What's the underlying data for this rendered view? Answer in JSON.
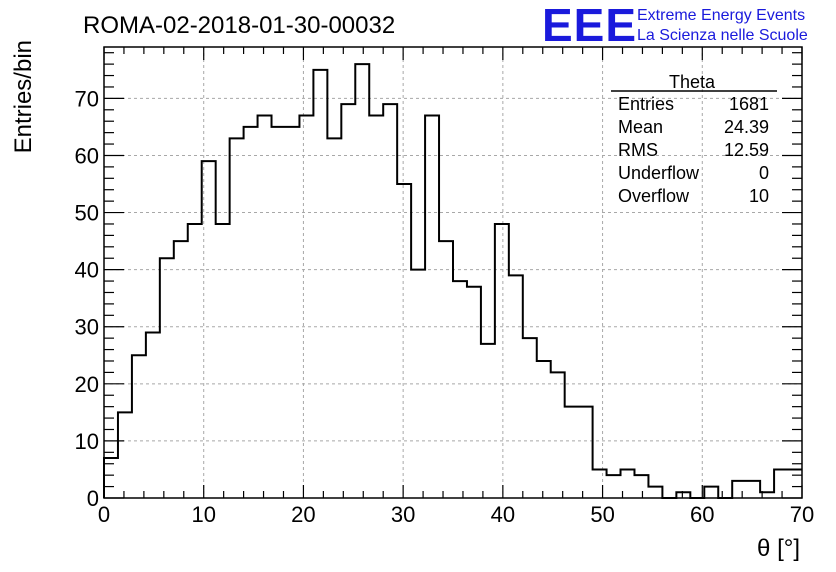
{
  "title": "ROMA-02-2018-01-30-00032",
  "logo": {
    "text": "EEE",
    "line1": "Extreme Energy Events",
    "line2": "La Scienza nelle Scuole",
    "color": "#1a1adc"
  },
  "stats": {
    "name": "Theta",
    "rows": [
      {
        "label": "Entries",
        "value": "1681"
      },
      {
        "label": "Mean",
        "value": "24.39"
      },
      {
        "label": "RMS",
        "value": "12.59"
      },
      {
        "label": "Underflow",
        "value": "0"
      },
      {
        "label": "Overflow",
        "value": "10"
      }
    ]
  },
  "chart_data": {
    "type": "histogram",
    "title": "ROMA-02-2018-01-30-00032",
    "xlabel": "θ [°]",
    "ylabel": "Entries/bin",
    "xlim": [
      0,
      70
    ],
    "ylim": [
      0,
      79
    ],
    "grid": true,
    "bin_width": 1.4,
    "x_ticks": [
      "0",
      "10",
      "20",
      "30",
      "40",
      "50",
      "60",
      "70"
    ],
    "y_ticks": [
      "0",
      "10",
      "20",
      "30",
      "40",
      "50",
      "60",
      "70"
    ],
    "values": [
      7,
      15,
      25,
      29,
      42,
      45,
      48,
      59,
      48,
      63,
      65,
      67,
      65,
      65,
      67,
      75,
      63,
      69,
      76,
      67,
      69,
      55,
      40,
      67,
      45,
      38,
      37,
      27,
      48,
      39,
      28,
      24,
      22,
      16,
      16,
      5,
      4,
      5,
      4,
      2,
      0,
      1,
      0,
      2,
      0,
      3,
      3,
      1,
      5,
      5
    ],
    "line_color": "#000000"
  }
}
